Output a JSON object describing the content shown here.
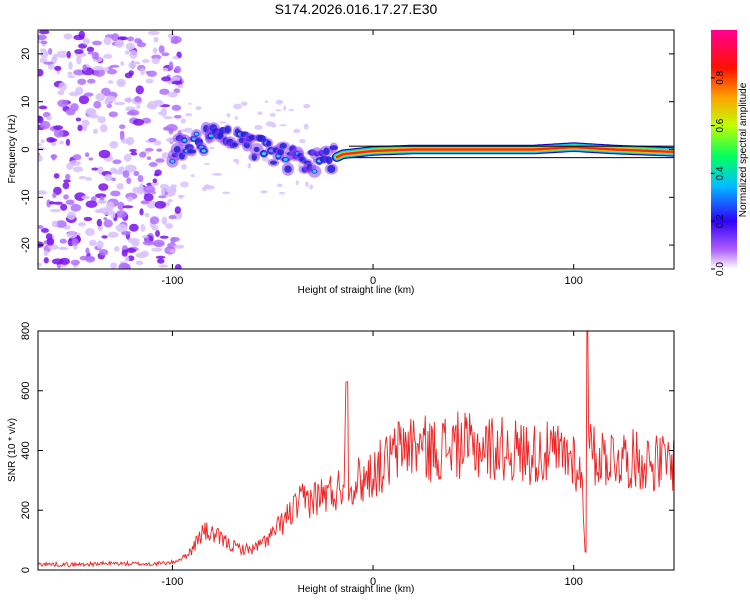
{
  "figure_title": "S174.2026.016.17.27.E30",
  "chart_data": [
    {
      "type": "heatmap",
      "title": "S174.2026.016.17.27.E30",
      "xlabel": "Height of straight line (km)",
      "ylabel": "Frequency (Hz)",
      "xlim": [
        -167,
        150
      ],
      "ylim": [
        -25,
        25
      ],
      "x_ticks": [
        -100,
        0,
        100
      ],
      "x_tick_labels": [
        "-100",
        "0",
        "100"
      ],
      "y_ticks": [
        -20,
        -10,
        0,
        10,
        20
      ],
      "y_tick_labels": [
        "-20",
        "-10",
        "0",
        "10",
        "20"
      ],
      "colorbar": {
        "label": "Normalized spectral amplitude",
        "range": [
          0,
          1
        ],
        "ticks": [
          0.0,
          0.2,
          0.4,
          0.6,
          0.8
        ],
        "tick_labels": [
          "0.0",
          "0.2",
          "0.4",
          "0.6",
          "0.8"
        ],
        "colormap": [
          "#ffffff",
          "#8a00ff",
          "#0000ff",
          "#00ffff",
          "#00ff00",
          "#ffff00",
          "#ff0000",
          "#ff0080"
        ]
      },
      "ridge": [
        {
          "x": -100,
          "f": 0.0,
          "amp": 0.25
        },
        {
          "x": -90,
          "f": 1.5,
          "amp": 0.35
        },
        {
          "x": -75,
          "f": 2.5,
          "amp": 0.35
        },
        {
          "x": -60,
          "f": 0.5,
          "amp": 0.3
        },
        {
          "x": -45,
          "f": -1.5,
          "amp": 0.3
        },
        {
          "x": -35,
          "f": -2.5,
          "amp": 0.3
        },
        {
          "x": -25,
          "f": -3.0,
          "amp": 0.3
        },
        {
          "x": -15,
          "f": -1.0,
          "amp": 0.5
        },
        {
          "x": 0,
          "f": -0.3,
          "amp": 0.7
        },
        {
          "x": 20,
          "f": 0.0,
          "amp": 0.9
        },
        {
          "x": 50,
          "f": 0.0,
          "amp": 0.95
        },
        {
          "x": 80,
          "f": 0.0,
          "amp": 0.9
        },
        {
          "x": 100,
          "f": 0.5,
          "amp": 0.6
        },
        {
          "x": 120,
          "f": 0.0,
          "amp": 0.9
        },
        {
          "x": 150,
          "f": -0.5,
          "amp": 0.8
        }
      ]
    },
    {
      "type": "line",
      "title": "",
      "xlabel": "Height of straight line (km)",
      "ylabel": "SNR (10 * v/v)",
      "xlim": [
        -167,
        150
      ],
      "ylim": [
        0,
        800
      ],
      "x_ticks": [
        -100,
        0,
        100
      ],
      "x_tick_labels": [
        "-100",
        "0",
        "100"
      ],
      "y_ticks": [
        0,
        200,
        400,
        600,
        800
      ],
      "y_tick_labels": [
        "0",
        "200",
        "400",
        "600",
        "800"
      ],
      "color": "#ee2222",
      "series": [
        {
          "name": "SNR",
          "x": [
            -167,
            -150,
            -130,
            -110,
            -100,
            -95,
            -90,
            -85,
            -80,
            -75,
            -70,
            -65,
            -60,
            -55,
            -50,
            -45,
            -40,
            -35,
            -30,
            -25,
            -20,
            -15,
            -13,
            -12,
            -10,
            -5,
            0,
            5,
            10,
            15,
            20,
            25,
            30,
            40,
            50,
            60,
            70,
            80,
            90,
            100,
            104,
            106,
            107,
            108,
            110,
            120,
            130,
            140,
            150
          ],
          "y": [
            20,
            18,
            22,
            20,
            25,
            40,
            70,
            130,
            120,
            100,
            80,
            70,
            70,
            90,
            120,
            160,
            200,
            230,
            240,
            250,
            260,
            280,
            630,
            240,
            300,
            300,
            330,
            350,
            380,
            420,
            420,
            410,
            400,
            420,
            410,
            410,
            400,
            390,
            390,
            380,
            300,
            60,
            800,
            400,
            380,
            380,
            370,
            360,
            360
          ]
        }
      ]
    }
  ]
}
